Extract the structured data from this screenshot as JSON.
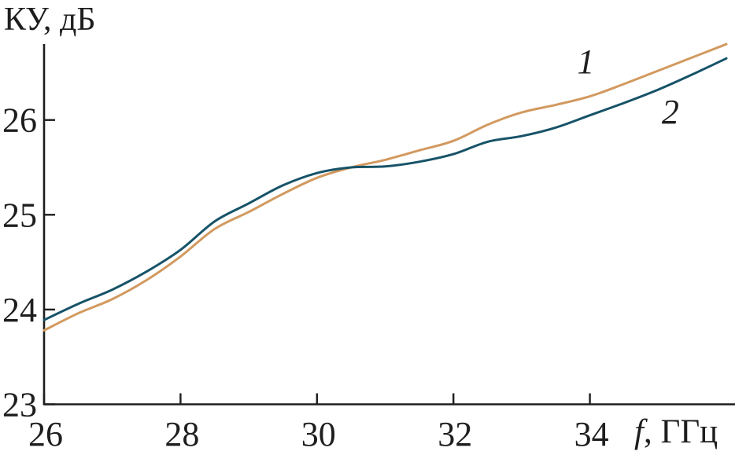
{
  "chart_data": {
    "type": "line",
    "title": "",
    "ylabel": "КУ, дБ",
    "xlabel_symbol": "f",
    "xlabel_unit": ", ГГц",
    "xlim": [
      26,
      36.08
    ],
    "ylim": [
      23,
      26.8
    ],
    "x_ticks": [
      26,
      28,
      30,
      32,
      34
    ],
    "y_ticks": [
      23,
      24,
      25,
      26
    ],
    "grid": false,
    "legend_position": "inline-labels",
    "axis_color": "#1e1e1e",
    "x": [
      26.0,
      26.5,
      27.0,
      27.5,
      28.0,
      28.5,
      29.0,
      29.5,
      30.0,
      30.5,
      31.0,
      31.5,
      32.0,
      32.5,
      33.0,
      33.5,
      34.0,
      34.5,
      35.0,
      35.5,
      36.0
    ],
    "series": [
      {
        "name": "1",
        "color": "#d2995f",
        "label_pos": {
          "x": 33.94,
          "y": 26.62
        },
        "values": [
          23.78,
          23.96,
          24.11,
          24.31,
          24.56,
          24.85,
          25.03,
          25.22,
          25.39,
          25.5,
          25.58,
          25.68,
          25.78,
          25.95,
          26.08,
          26.16,
          26.25,
          26.38,
          26.52,
          26.66,
          26.8
        ]
      },
      {
        "name": "2",
        "color": "#175368",
        "label_pos": {
          "x": 35.18,
          "y": 26.09
        },
        "values": [
          23.89,
          24.06,
          24.21,
          24.4,
          24.63,
          24.93,
          25.12,
          25.31,
          25.44,
          25.5,
          25.51,
          25.56,
          25.64,
          25.77,
          25.83,
          25.92,
          26.05,
          26.18,
          26.32,
          26.48,
          26.65
        ]
      }
    ]
  }
}
